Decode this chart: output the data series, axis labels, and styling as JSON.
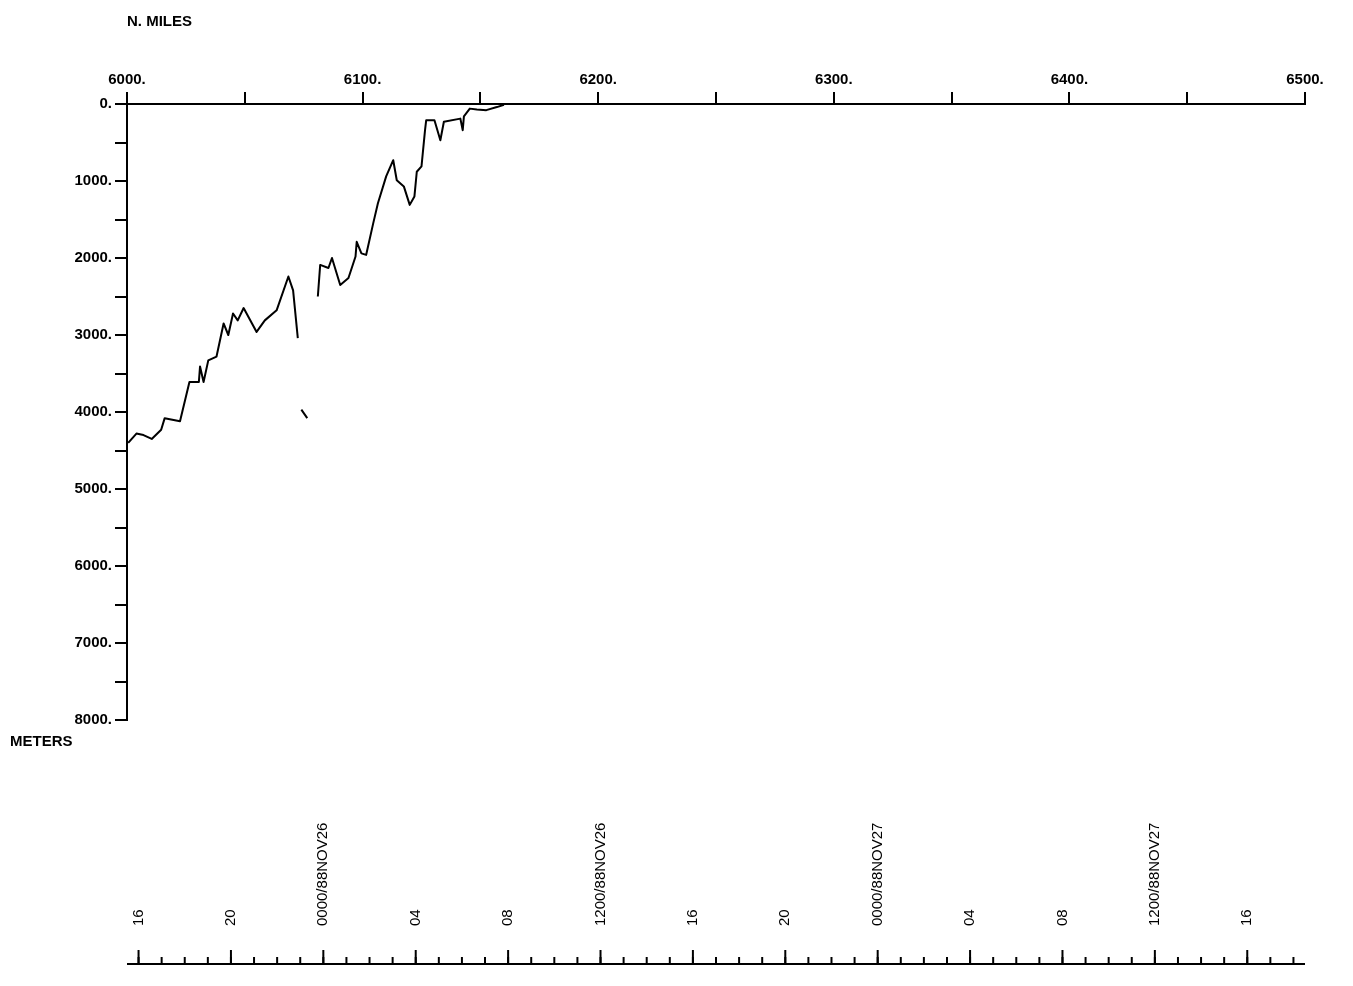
{
  "chart_data": {
    "type": "line",
    "xlabel": "N. MILES",
    "ylabel": "METERS",
    "xlim": [
      6000,
      6500
    ],
    "xticks": [
      {
        "value": 6000,
        "label": "6000."
      },
      {
        "value": 6050,
        "label": null
      },
      {
        "value": 6100,
        "label": "6100."
      },
      {
        "value": 6150,
        "label": null
      },
      {
        "value": 6200,
        "label": "6200."
      },
      {
        "value": 6250,
        "label": null
      },
      {
        "value": 6300,
        "label": "6300."
      },
      {
        "value": 6350,
        "label": null
      },
      {
        "value": 6400,
        "label": "6400."
      },
      {
        "value": 6450,
        "label": null
      },
      {
        "value": 6500,
        "label": "6500."
      }
    ],
    "ylim": [
      8000,
      0
    ],
    "yticks": [
      {
        "value": 0,
        "label": "0."
      },
      {
        "value": 500,
        "label": null
      },
      {
        "value": 1000,
        "label": "1000."
      },
      {
        "value": 1500,
        "label": null
      },
      {
        "value": 2000,
        "label": "2000."
      },
      {
        "value": 2500,
        "label": null
      },
      {
        "value": 3000,
        "label": "3000."
      },
      {
        "value": 3500,
        "label": null
      },
      {
        "value": 4000,
        "label": "4000."
      },
      {
        "value": 4500,
        "label": null
      },
      {
        "value": 5000,
        "label": "5000."
      },
      {
        "value": 5500,
        "label": null
      },
      {
        "value": 6000,
        "label": "6000."
      },
      {
        "value": 6500,
        "label": null
      },
      {
        "value": 7000,
        "label": "7000."
      },
      {
        "value": 7500,
        "label": null
      },
      {
        "value": 8000,
        "label": "8000."
      }
    ],
    "x2lim": [
      "1988-11-25T15:30",
      "1988-11-27T18:30"
    ],
    "x2ticks": [
      {
        "value": "1988-11-25T16:00",
        "label": "16"
      },
      {
        "value": "1988-11-25T20:00",
        "label": "20"
      },
      {
        "value": "1988-11-26T00:00",
        "label": "0000/88NOV26"
      },
      {
        "value": "1988-11-26T04:00",
        "label": "04"
      },
      {
        "value": "1988-11-26T08:00",
        "label": "08"
      },
      {
        "value": "1988-11-26T12:00",
        "label": "1200/88NOV26"
      },
      {
        "value": "1988-11-26T16:00",
        "label": "16"
      },
      {
        "value": "1988-11-26T20:00",
        "label": "20"
      },
      {
        "value": "1988-11-27T00:00",
        "label": "0000/88NOV27"
      },
      {
        "value": "1988-11-27T04:00",
        "label": "04"
      },
      {
        "value": "1988-11-27T08:00",
        "label": "08"
      },
      {
        "value": "1988-11-27T12:00",
        "label": "1200/88NOV27"
      },
      {
        "value": "1988-11-27T16:00",
        "label": "16"
      }
    ],
    "marker": "none",
    "line_style": "solid",
    "series": [
      {
        "color": "#000000",
        "x": [
          6000.5,
          6004,
          6007,
          6010.5,
          6014.5,
          6016,
          6022.5,
          6026.5,
          6030.5,
          6031,
          6032.5,
          6034.5,
          6038,
          6041,
          6043,
          6045,
          6047,
          6049.5,
          6055,
          6058.5,
          6063.5,
          6068.5,
          6070.5,
          6072.5,
          6073.5,
          6074,
          6076.5,
          6078,
          6081,
          6082,
          6085.5,
          6087,
          6090.5,
          6094,
          6097,
          6097.5,
          6099.5,
          6101.5,
          6104.5,
          6106.5,
          6110,
          6113,
          6114.5,
          6117.5,
          6120,
          6122,
          6123,
          6125,
          6126.5,
          6127,
          6130.5,
          6133,
          6134.5,
          6141.5,
          6142.5,
          6143,
          6145.5,
          6148.5,
          6152.5,
          6157,
          6160
        ],
        "values": [
          4400,
          4280,
          4300,
          4350,
          4230,
          4080,
          4120,
          3610,
          3610,
          3410,
          3610,
          3330,
          3280,
          2850,
          3000,
          2720,
          2810,
          2650,
          2960,
          2810,
          2680,
          2240,
          2420,
          3040,
          null,
          3970,
          4080,
          null,
          2500,
          2090,
          2130,
          2000,
          2350,
          2260,
          1980,
          1790,
          1940,
          1960,
          1550,
          1290,
          940,
          730,
          990,
          1070,
          1310,
          1200,
          880,
          810,
          340,
          210,
          210,
          470,
          230,
          190,
          340,
          160,
          60,
          70,
          80,
          40,
          10
        ]
      }
    ]
  }
}
